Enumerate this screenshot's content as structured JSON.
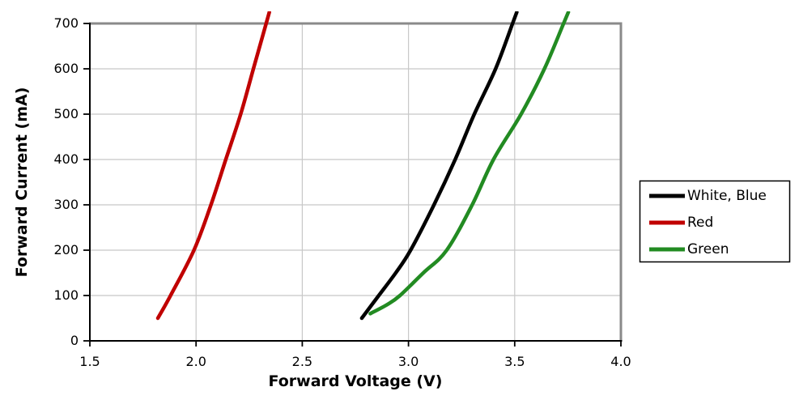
{
  "chart_data": {
    "type": "line",
    "title": "",
    "xlabel": "Forward Voltage (V)",
    "ylabel": "Forward Current (mA)",
    "xlim": [
      1.5,
      4.0
    ],
    "ylim": [
      0,
      700
    ],
    "x_ticks": [
      1.5,
      2.0,
      2.5,
      3.0,
      3.5,
      4.0
    ],
    "x_tick_labels": [
      "1.5",
      "2.0",
      "2.5",
      "3.0",
      "3.5",
      "4.0"
    ],
    "y_ticks": [
      0,
      100,
      200,
      300,
      400,
      500,
      600,
      700
    ],
    "y_tick_labels": [
      "0",
      "100",
      "200",
      "300",
      "400",
      "500",
      "600",
      "700"
    ],
    "grid": "both",
    "legend_position": "right-outside",
    "series": [
      {
        "name": "White, Blue",
        "color": "#000000",
        "points": [
          [
            2.78,
            50
          ],
          [
            2.86,
            100
          ],
          [
            2.94,
            150
          ],
          [
            3.01,
            200
          ],
          [
            3.12,
            300
          ],
          [
            3.22,
            400
          ],
          [
            3.31,
            500
          ],
          [
            3.41,
            600
          ],
          [
            3.49,
            700
          ]
        ]
      },
      {
        "name": "Red",
        "color": "#C00000",
        "points": [
          [
            1.82,
            50
          ],
          [
            1.88,
            100
          ],
          [
            1.99,
            200
          ],
          [
            2.07,
            300
          ],
          [
            2.14,
            400
          ],
          [
            2.21,
            500
          ],
          [
            2.27,
            600
          ],
          [
            2.33,
            700
          ]
        ]
      },
      {
        "name": "Green",
        "color": "#228B22",
        "points": [
          [
            2.82,
            60
          ],
          [
            2.9,
            80
          ],
          [
            2.96,
            100
          ],
          [
            3.07,
            150
          ],
          [
            3.18,
            200
          ],
          [
            3.3,
            300
          ],
          [
            3.4,
            400
          ],
          [
            3.53,
            500
          ],
          [
            3.64,
            600
          ],
          [
            3.73,
            700
          ]
        ]
      }
    ]
  },
  "colors": {
    "background": "#FFFFFF",
    "gridline": "#C8C8C8",
    "spine_dark": "#000000",
    "spine_gray": "#8A8A8A",
    "tick": "#000000",
    "legend_border": "#000000",
    "legend_fill": "#FFFFFF",
    "text": "#000000"
  }
}
